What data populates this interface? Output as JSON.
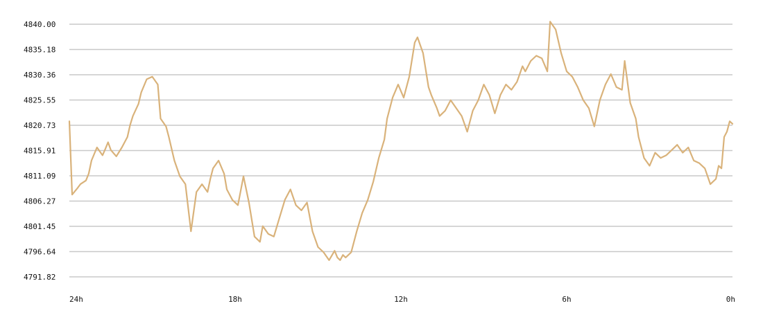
{
  "chart_data": {
    "type": "line",
    "title": "",
    "xlabel": "",
    "ylabel": "",
    "grid": true,
    "legend": "none",
    "xlim": [
      24,
      0
    ],
    "ylim": [
      4791.82,
      4840.0
    ],
    "y_ticks": [
      "4840.00",
      "4835.18",
      "4830.36",
      "4825.55",
      "4820.73",
      "4815.91",
      "4811.09",
      "4806.27",
      "4801.45",
      "4796.64",
      "4791.82"
    ],
    "x_ticks": [
      {
        "value": 24,
        "label": "24h"
      },
      {
        "value": 18,
        "label": "18h"
      },
      {
        "value": 12,
        "label": "12h"
      },
      {
        "value": 6,
        "label": "6h"
      },
      {
        "value": 0,
        "label": "0h"
      }
    ],
    "colors": {
      "line": "#d9b27a",
      "grid": "#c8c8c8",
      "text": "#111111"
    },
    "series": [
      {
        "x": [
          24,
          23.9,
          23.7,
          23.6,
          23.4,
          23.3,
          23.2,
          23,
          22.8,
          22.7,
          22.6,
          22.5,
          22.3,
          22.1,
          21.9,
          21.8,
          21.7,
          21.5,
          21.4,
          21.2,
          21,
          20.8,
          20.7,
          20.5,
          20.4,
          20.2,
          20,
          19.8,
          19.6,
          19.4,
          19.2,
          19,
          18.9,
          18.8,
          18.6,
          18.4,
          18.3,
          18.1,
          17.9,
          17.7,
          17.5,
          17.3,
          17.1,
          17,
          16.8,
          16.6,
          16.4,
          16.2,
          16,
          15.8,
          15.6,
          15.4,
          15.2,
          15,
          14.8,
          14.6,
          14.4,
          14.3,
          14.2,
          14.1,
          14,
          13.9,
          13.8,
          13.6,
          13.4,
          13.2,
          13,
          12.8,
          12.6,
          12.5,
          12.3,
          12.1,
          11.9,
          11.7,
          11.5,
          11.4,
          11.2,
          11,
          10.9,
          10.7,
          10.6,
          10.4,
          10.2,
          10,
          9.8,
          9.6,
          9.4,
          9.2,
          9,
          8.8,
          8.6,
          8.4,
          8.2,
          8,
          7.8,
          7.6,
          7.5,
          7.3,
          7.1,
          6.9,
          6.7,
          6.6,
          6.4,
          6.2,
          6,
          5.8,
          5.6,
          5.4,
          5.2,
          5,
          4.8,
          4.6,
          4.4,
          4.2,
          4,
          3.9,
          3.7,
          3.5,
          3.4,
          3.2,
          3,
          2.8,
          2.6,
          2.4,
          2.2,
          2,
          1.8,
          1.6,
          1.4,
          1.2,
          1,
          0.8,
          0.6,
          0.5,
          0.4,
          0.3,
          0.2,
          0.1,
          0
        ],
        "values": [
          4821.5,
          4807.5,
          4808.8,
          4809.5,
          4810.2,
          4811.5,
          4814.0,
          4816.5,
          4815.0,
          4816.2,
          4817.5,
          4816.0,
          4814.8,
          4816.5,
          4818.5,
          4820.8,
          4822.5,
          4824.8,
          4827.0,
          4829.5,
          4830.0,
          4828.5,
          4822.0,
          4820.5,
          4818.5,
          4814.0,
          4811.0,
          4809.5,
          4800.5,
          4808.0,
          4809.5,
          4808.0,
          4810.5,
          4812.5,
          4814.0,
          4811.5,
          4808.5,
          4806.5,
          4805.5,
          4811.0,
          4806.0,
          4799.5,
          4798.5,
          4801.5,
          4800.0,
          4799.5,
          4803.0,
          4806.5,
          4808.5,
          4805.5,
          4804.5,
          4806.0,
          4800.5,
          4797.5,
          4796.5,
          4795.0,
          4796.8,
          4795.5,
          4795.0,
          4796.0,
          4795.5,
          4796.0,
          4796.5,
          4800.5,
          4804.0,
          4806.5,
          4810.0,
          4814.5,
          4818.0,
          4822.0,
          4826.0,
          4828.5,
          4826.0,
          4830.0,
          4836.5,
          4837.5,
          4834.5,
          4828.0,
          4826.5,
          4824.0,
          4822.5,
          4823.5,
          4825.5,
          4824.0,
          4822.5,
          4819.5,
          4823.5,
          4825.5,
          4828.5,
          4826.5,
          4823.0,
          4826.5,
          4828.5,
          4827.5,
          4829.0,
          4832.0,
          4831.0,
          4833.0,
          4834.0,
          4833.5,
          4831.0,
          4840.5,
          4839.0,
          4834.5,
          4831.0,
          4830.0,
          4828.0,
          4825.5,
          4824.0,
          4820.5,
          4825.5,
          4828.5,
          4830.5,
          4828.0,
          4827.5,
          4833.0,
          4825.0,
          4822.0,
          4818.5,
          4814.5,
          4813.0,
          4815.5,
          4814.5,
          4815.0,
          4816.0,
          4817.0,
          4815.5,
          4816.5,
          4814.0,
          4813.5,
          4812.5,
          4809.5,
          4810.5,
          4813.0,
          4812.5,
          4818.5,
          4819.5,
          4821.5,
          4821.0
        ]
      }
    ]
  }
}
